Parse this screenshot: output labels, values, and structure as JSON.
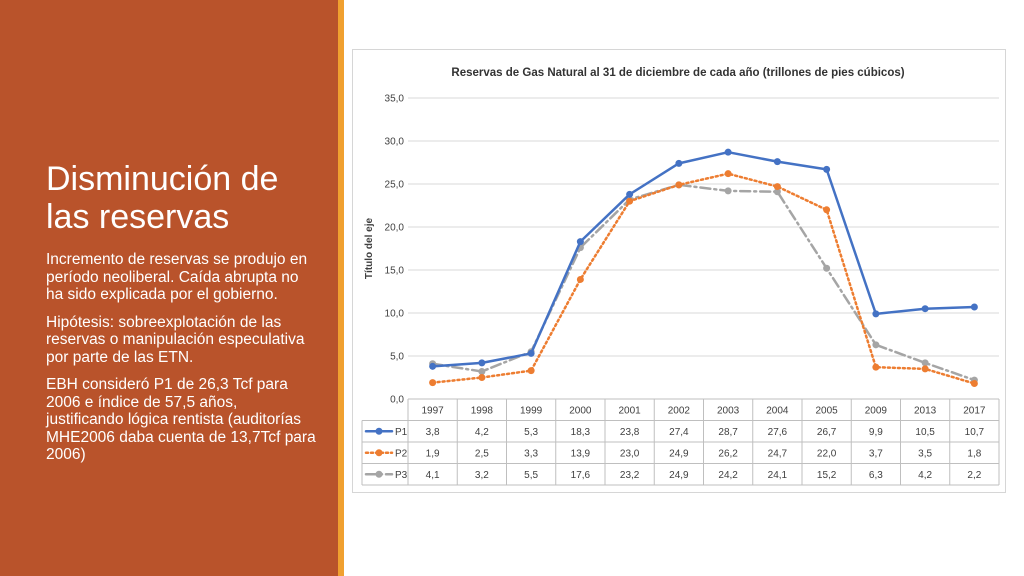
{
  "slide": {
    "title_line1": "Disminución de",
    "title_line2": "las reservas",
    "paragraphs": [
      "Incremento de reservas se produjo en período neoliberal. Caída abrupta no ha sido explicada por el gobierno.",
      "Hipótesis: sobreexplotación de las reservas o manipulación especulativa por parte de las ETN.",
      "EBH consideró P1 de 26,3 Tcf para 2006 e índice de 57,5 años, justificando lógica rentista (auditorías MHE2006 daba cuenta de 13,7Tcf para 2006)"
    ]
  },
  "colors": {
    "panel": "#b9532b",
    "accent_bar": "#f0a030",
    "P1": "#4472c4",
    "P2": "#ed7d31",
    "P3": "#a5a5a5"
  },
  "chart_data": {
    "type": "line",
    "title": "Reservas de Gas Natural al 31 de diciembre de cada año (trillones de pies cúbicos)",
    "xlabel": "",
    "ylabel": "Título del eje",
    "categories": [
      "1997",
      "1998",
      "1999",
      "2000",
      "2001",
      "2002",
      "2003",
      "2004",
      "2005",
      "2009",
      "2013",
      "2017"
    ],
    "ylim": [
      0,
      35
    ],
    "yticks": [
      "0,0",
      "5,0",
      "10,0",
      "15,0",
      "20,0",
      "25,0",
      "30,0",
      "35,0"
    ],
    "grid": true,
    "legend": "data-table",
    "series": [
      {
        "name": "P1",
        "style": "solid",
        "values": [
          3.8,
          4.2,
          5.3,
          18.3,
          23.8,
          27.4,
          28.7,
          27.6,
          26.7,
          9.9,
          10.5,
          10.7
        ],
        "labels": [
          "3,8",
          "4,2",
          "5,3",
          "18,3",
          "23,8",
          "27,4",
          "28,7",
          "27,6",
          "26,7",
          "9,9",
          "10,5",
          "10,7"
        ]
      },
      {
        "name": "P2",
        "style": "dotted",
        "values": [
          1.9,
          2.5,
          3.3,
          13.9,
          23.0,
          24.9,
          26.2,
          24.7,
          22.0,
          3.7,
          3.5,
          1.8
        ],
        "labels": [
          "1,9",
          "2,5",
          "3,3",
          "13,9",
          "23,0",
          "24,9",
          "26,2",
          "24,7",
          "22,0",
          "3,7",
          "3,5",
          "1,8"
        ]
      },
      {
        "name": "P3",
        "style": "dashdot",
        "values": [
          4.1,
          3.2,
          5.5,
          17.6,
          23.2,
          24.9,
          24.2,
          24.1,
          15.2,
          6.3,
          4.2,
          2.2
        ],
        "labels": [
          "4,1",
          "3,2",
          "5,5",
          "17,6",
          "23,2",
          "24,9",
          "24,2",
          "24,1",
          "15,2",
          "6,3",
          "4,2",
          "2,2"
        ]
      }
    ]
  }
}
